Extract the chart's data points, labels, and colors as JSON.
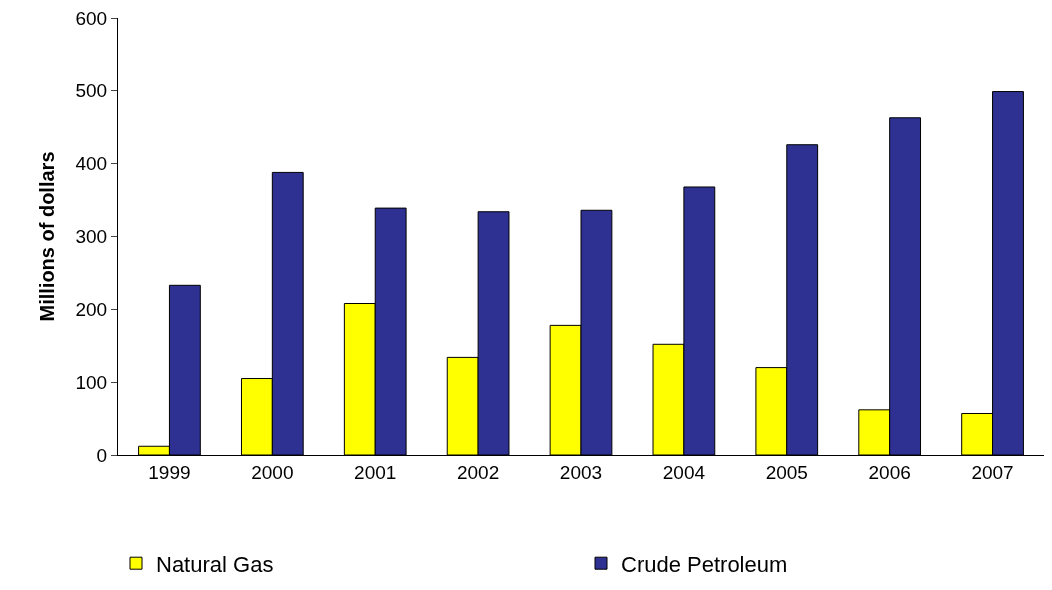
{
  "chart_data": {
    "type": "bar",
    "ylabel": "Millions of dollars",
    "categories": [
      "1999",
      "2000",
      "2001",
      "2002",
      "2003",
      "2004",
      "2005",
      "2006",
      "2007"
    ],
    "series": [
      {
        "name": "Natural Gas",
        "color": "#ffff00",
        "values": [
          12,
          105,
          208,
          134,
          178,
          152,
          120,
          62,
          57
        ]
      },
      {
        "name": "Crude Petroleum",
        "color": "#2e3192",
        "values": [
          233,
          388,
          339,
          334,
          336,
          368,
          426,
          463,
          499
        ]
      }
    ],
    "ylim": [
      0,
      600
    ],
    "yticks": [
      0,
      100,
      200,
      300,
      400,
      500,
      600
    ],
    "legend": "bottom"
  }
}
